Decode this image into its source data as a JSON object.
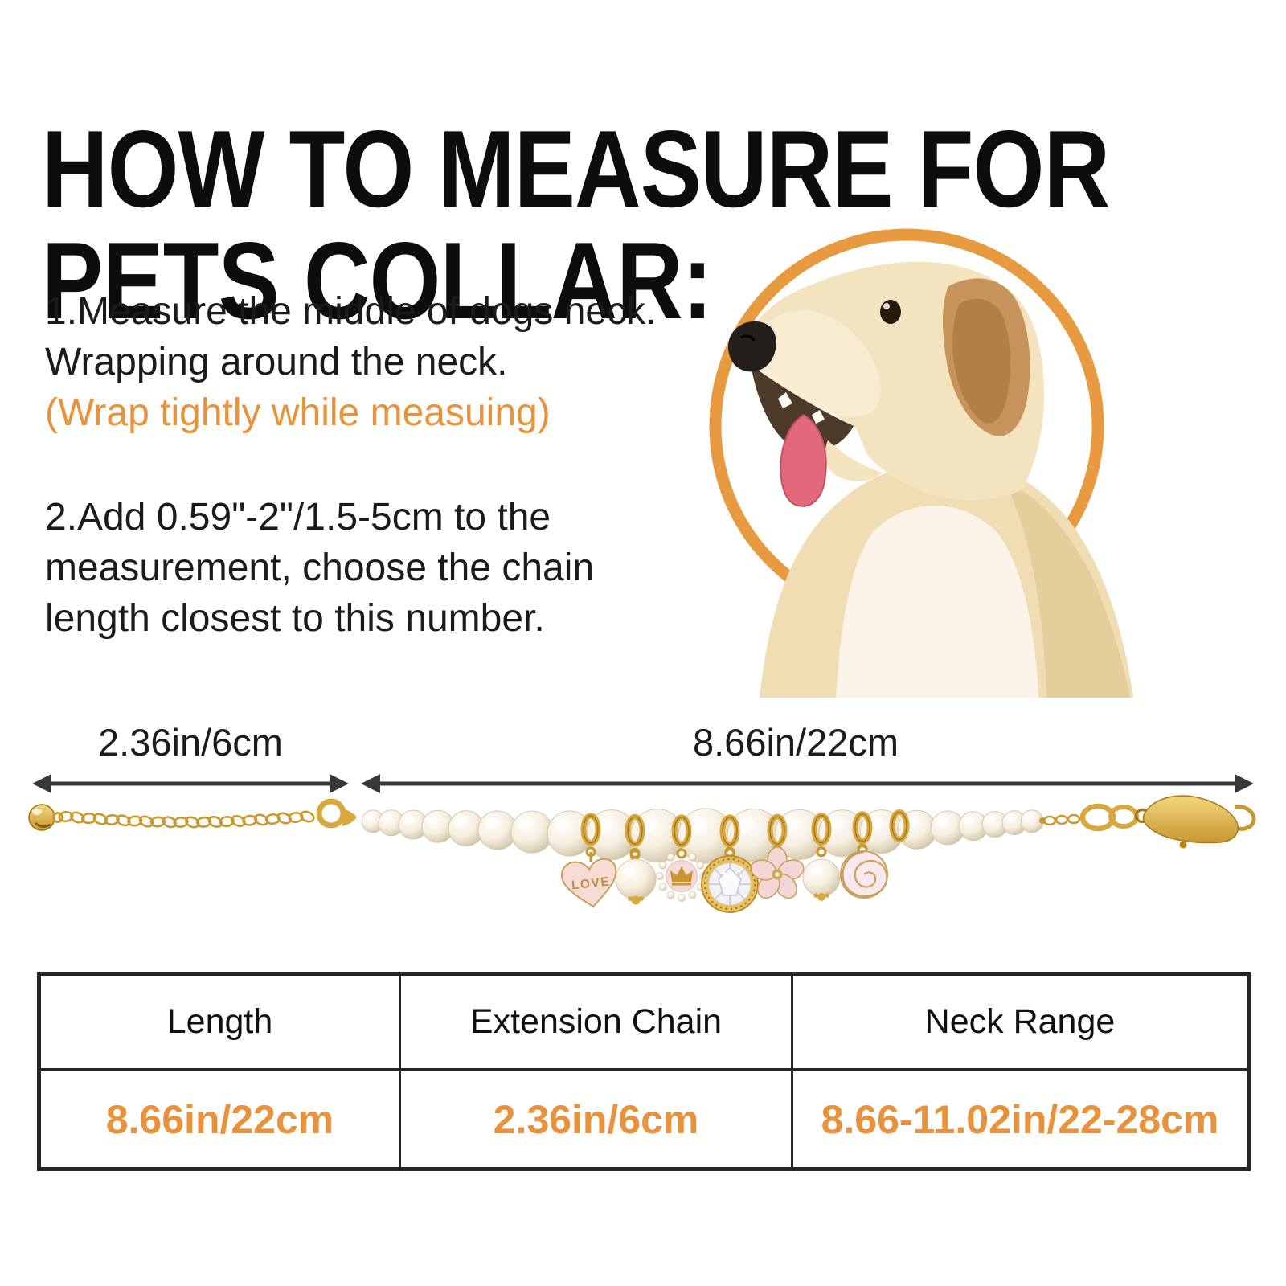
{
  "title": {
    "line1": "HOW TO MEASURE FOR",
    "line2": "PETS COLLAR:"
  },
  "steps": {
    "step1_line1": "1.Measure the middle of dogs neck.",
    "step1_line2": "Wrapping around the neck.",
    "step1_note": "(Wrap tightly while measuing)",
    "step2_line1": "2.Add 0.59\"-2\"/1.5-5cm to the",
    "step2_line2": "measurement, choose the chain",
    "step2_line3": "length closest to this number."
  },
  "diagram": {
    "extension_length_label": "2.36in/6cm",
    "chain_length_label": "8.66in/22cm",
    "heart_charm_text": "LOVE"
  },
  "table": {
    "headers": [
      "Length",
      "Extension Chain",
      "Neck Range"
    ],
    "values": [
      "8.66in/22cm",
      "2.36in/6cm",
      "8.66-11.02in/22-28cm"
    ]
  },
  "colors": {
    "accent_orange": "#E8923C",
    "ring_orange": "#E89A40",
    "gold": "#D9A83C",
    "arrow_dark": "#383838",
    "table_border": "#262626"
  }
}
